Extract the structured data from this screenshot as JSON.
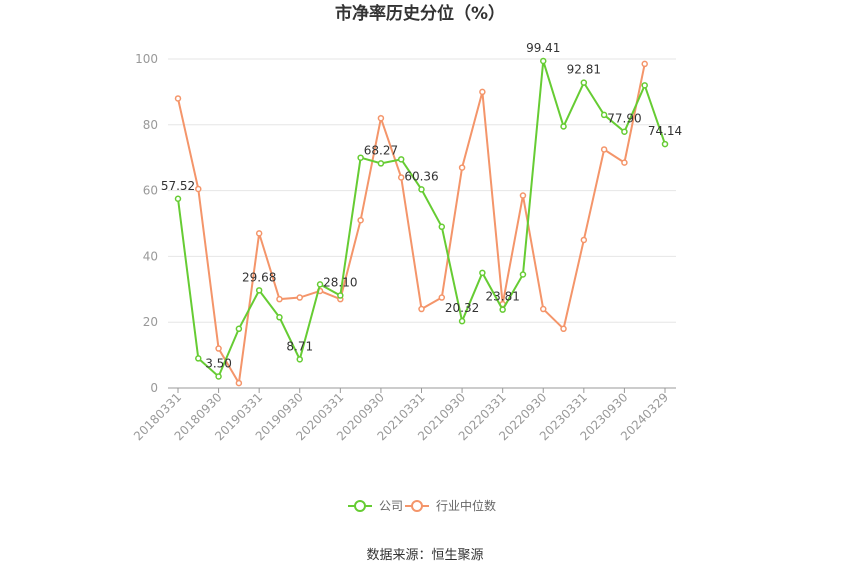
{
  "chart_data": {
    "type": "line",
    "title": "市净率历史分位（%）",
    "xlabel": "",
    "ylabel": "",
    "ylim": [
      0,
      100
    ],
    "yticks": [
      0,
      20,
      40,
      60,
      80,
      100
    ],
    "grid": true,
    "legend_position": "bottom",
    "x": [
      "20180331",
      "20180630",
      "20180930",
      "20181231",
      "20190331",
      "20190630",
      "20190930",
      "20191231",
      "20200331",
      "20200630",
      "20200930",
      "20201231",
      "20210331",
      "20210630",
      "20210930",
      "20211231",
      "20220331",
      "20220630",
      "20220930",
      "20221231",
      "20230331",
      "20230630",
      "20230930",
      "20231231",
      "20240329"
    ],
    "x_tick_labels": [
      "20180331",
      "20180930",
      "20190331",
      "20190930",
      "20200331",
      "20200930",
      "20210331",
      "20210930",
      "20220331",
      "20220930",
      "20230331",
      "20230930",
      "20240329"
    ],
    "series": [
      {
        "name": "公司",
        "color": "#66cc33",
        "values": [
          57.52,
          9.0,
          3.5,
          18.0,
          29.68,
          21.5,
          8.71,
          31.5,
          28.1,
          70.0,
          68.27,
          69.5,
          60.36,
          49.0,
          20.32,
          35.0,
          23.81,
          34.5,
          99.41,
          79.5,
          92.81,
          83.0,
          77.9,
          92.0,
          74.14
        ],
        "labels": {
          "0": "57.52",
          "2": "3.50",
          "4": "29.68",
          "6": "8.71",
          "8": "28.10",
          "10": "68.27",
          "12": "60.36",
          "14": "20.32",
          "16": "23.81",
          "18": "99.41",
          "20": "92.81",
          "22": "77.90",
          "24": "74.14"
        }
      },
      {
        "name": "行业中位数",
        "color": "#f4956a",
        "values": [
          88.0,
          60.5,
          12.0,
          1.5,
          47.0,
          27.0,
          27.5,
          29.5,
          27.0,
          51.0,
          82.0,
          64.0,
          24.0,
          27.5,
          67.0,
          90.0,
          25.5,
          58.5,
          24.0,
          18.0,
          45.0,
          72.5,
          68.5,
          98.5,
          null
        ]
      }
    ]
  },
  "source_text": "数据来源：恒生聚源"
}
